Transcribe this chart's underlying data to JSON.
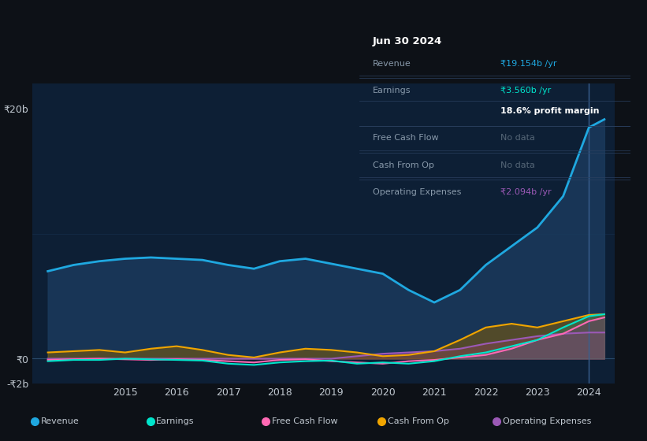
{
  "bg_color": "#0d1117",
  "plot_bg_color": "#0d1f35",
  "grid_color": "#1e3a5f",
  "text_color": "#c0c8d0",
  "title_color": "#ffffff",
  "y_axis_label_color": "#c0c8d0",
  "ylim": [
    -2,
    22
  ],
  "yticks": [
    -2,
    0,
    20
  ],
  "ytick_labels": [
    "-₹2b",
    "₹0",
    "₹20b"
  ],
  "xlabel_years": [
    "2015",
    "2016",
    "2017",
    "2018",
    "2019",
    "2020",
    "2021",
    "2022",
    "2023",
    "2024"
  ],
  "series": {
    "revenue": {
      "color": "#1fa8e0",
      "fill_color": "#1a3a5c",
      "label": "Revenue",
      "values_x": [
        2013.5,
        2014.0,
        2014.5,
        2015.0,
        2015.5,
        2016.0,
        2016.5,
        2017.0,
        2017.5,
        2018.0,
        2018.5,
        2019.0,
        2019.5,
        2020.0,
        2020.5,
        2021.0,
        2021.5,
        2022.0,
        2022.5,
        2023.0,
        2023.5,
        2024.0,
        2024.3
      ],
      "values_y": [
        7.0,
        7.5,
        7.8,
        8.0,
        8.1,
        8.0,
        7.9,
        7.5,
        7.2,
        7.8,
        8.0,
        7.6,
        7.2,
        6.8,
        5.5,
        4.5,
        5.5,
        7.5,
        9.0,
        10.5,
        13.0,
        18.5,
        19.154
      ]
    },
    "earnings": {
      "color": "#00e5cc",
      "label": "Earnings",
      "values_x": [
        2013.5,
        2014.0,
        2014.5,
        2015.0,
        2015.5,
        2016.0,
        2016.5,
        2017.0,
        2017.5,
        2018.0,
        2018.5,
        2019.0,
        2019.5,
        2020.0,
        2020.5,
        2021.0,
        2021.5,
        2022.0,
        2022.5,
        2023.0,
        2023.5,
        2024.0,
        2024.3
      ],
      "values_y": [
        -0.2,
        -0.1,
        -0.1,
        0.0,
        -0.05,
        -0.1,
        -0.15,
        -0.4,
        -0.5,
        -0.3,
        -0.2,
        -0.15,
        -0.4,
        -0.3,
        -0.4,
        -0.2,
        0.2,
        0.5,
        1.0,
        1.5,
        2.5,
        3.4,
        3.56
      ]
    },
    "free_cash_flow": {
      "color": "#ff69b4",
      "label": "Free Cash Flow",
      "values_x": [
        2013.5,
        2014.0,
        2014.5,
        2015.0,
        2015.5,
        2016.0,
        2016.5,
        2017.0,
        2017.5,
        2018.0,
        2018.5,
        2019.0,
        2019.5,
        2020.0,
        2020.5,
        2021.0,
        2021.5,
        2022.0,
        2022.5,
        2023.0,
        2023.5,
        2024.0,
        2024.3
      ],
      "values_y": [
        -0.1,
        -0.05,
        0.0,
        -0.05,
        -0.1,
        -0.05,
        -0.1,
        -0.2,
        -0.3,
        -0.1,
        -0.05,
        -0.2,
        -0.3,
        -0.4,
        -0.2,
        -0.1,
        0.1,
        0.3,
        0.8,
        1.5,
        2.0,
        3.0,
        3.3
      ]
    },
    "cash_from_op": {
      "color": "#f0a500",
      "label": "Cash From Op",
      "values_x": [
        2013.5,
        2014.0,
        2014.5,
        2015.0,
        2015.5,
        2016.0,
        2016.5,
        2017.0,
        2017.5,
        2018.0,
        2018.5,
        2019.0,
        2019.5,
        2020.0,
        2020.5,
        2021.0,
        2021.5,
        2022.0,
        2022.5,
        2023.0,
        2023.5,
        2024.0,
        2024.3
      ],
      "values_y": [
        0.5,
        0.6,
        0.7,
        0.5,
        0.8,
        1.0,
        0.7,
        0.3,
        0.1,
        0.5,
        0.8,
        0.7,
        0.5,
        0.2,
        0.3,
        0.6,
        1.5,
        2.5,
        2.8,
        2.5,
        3.0,
        3.5,
        3.56
      ]
    },
    "operating_expenses": {
      "color": "#9b59b6",
      "fill_color": "#5b2d8e",
      "label": "Operating Expenses",
      "values_x": [
        2013.5,
        2014.0,
        2014.5,
        2015.0,
        2015.5,
        2016.0,
        2016.5,
        2017.0,
        2017.5,
        2018.0,
        2018.5,
        2019.0,
        2019.5,
        2020.0,
        2020.5,
        2021.0,
        2021.5,
        2022.0,
        2022.5,
        2023.0,
        2023.5,
        2024.0,
        2024.3
      ],
      "values_y": [
        0.0,
        0.0,
        0.0,
        0.0,
        0.0,
        0.0,
        0.0,
        0.0,
        0.0,
        0.0,
        0.0,
        0.0,
        0.2,
        0.4,
        0.5,
        0.6,
        0.8,
        1.2,
        1.5,
        1.8,
        2.0,
        2.094,
        2.094
      ]
    }
  },
  "tooltip": {
    "date": "Jun 30 2024",
    "bg_color": "#111820",
    "border_color": "#2a4060",
    "title_color": "#ffffff",
    "label_color": "#8899aa",
    "rows": [
      {
        "label": "Revenue",
        "value": "₹19.154b /yr",
        "value_color": "#1fa8e0"
      },
      {
        "label": "Earnings",
        "value": "₹3.560b /yr",
        "value_color": "#00e5cc"
      },
      {
        "label": "",
        "value": "18.6% profit margin",
        "value_color": "#ffffff",
        "bold": true
      },
      {
        "label": "Free Cash Flow",
        "value": "No data",
        "value_color": "#556677"
      },
      {
        "label": "Cash From Op",
        "value": "No data",
        "value_color": "#556677"
      },
      {
        "label": "Operating Expenses",
        "value": "₹2.094b /yr",
        "value_color": "#9b59b6"
      }
    ]
  },
  "legend": [
    {
      "label": "Revenue",
      "color": "#1fa8e0"
    },
    {
      "label": "Earnings",
      "color": "#00e5cc"
    },
    {
      "label": "Free Cash Flow",
      "color": "#ff69b4"
    },
    {
      "label": "Cash From Op",
      "color": "#f0a500"
    },
    {
      "label": "Operating Expenses",
      "color": "#9b59b6"
    }
  ],
  "vertical_line_x": 2024.0,
  "xmin": 2013.2,
  "xmax": 2024.5
}
